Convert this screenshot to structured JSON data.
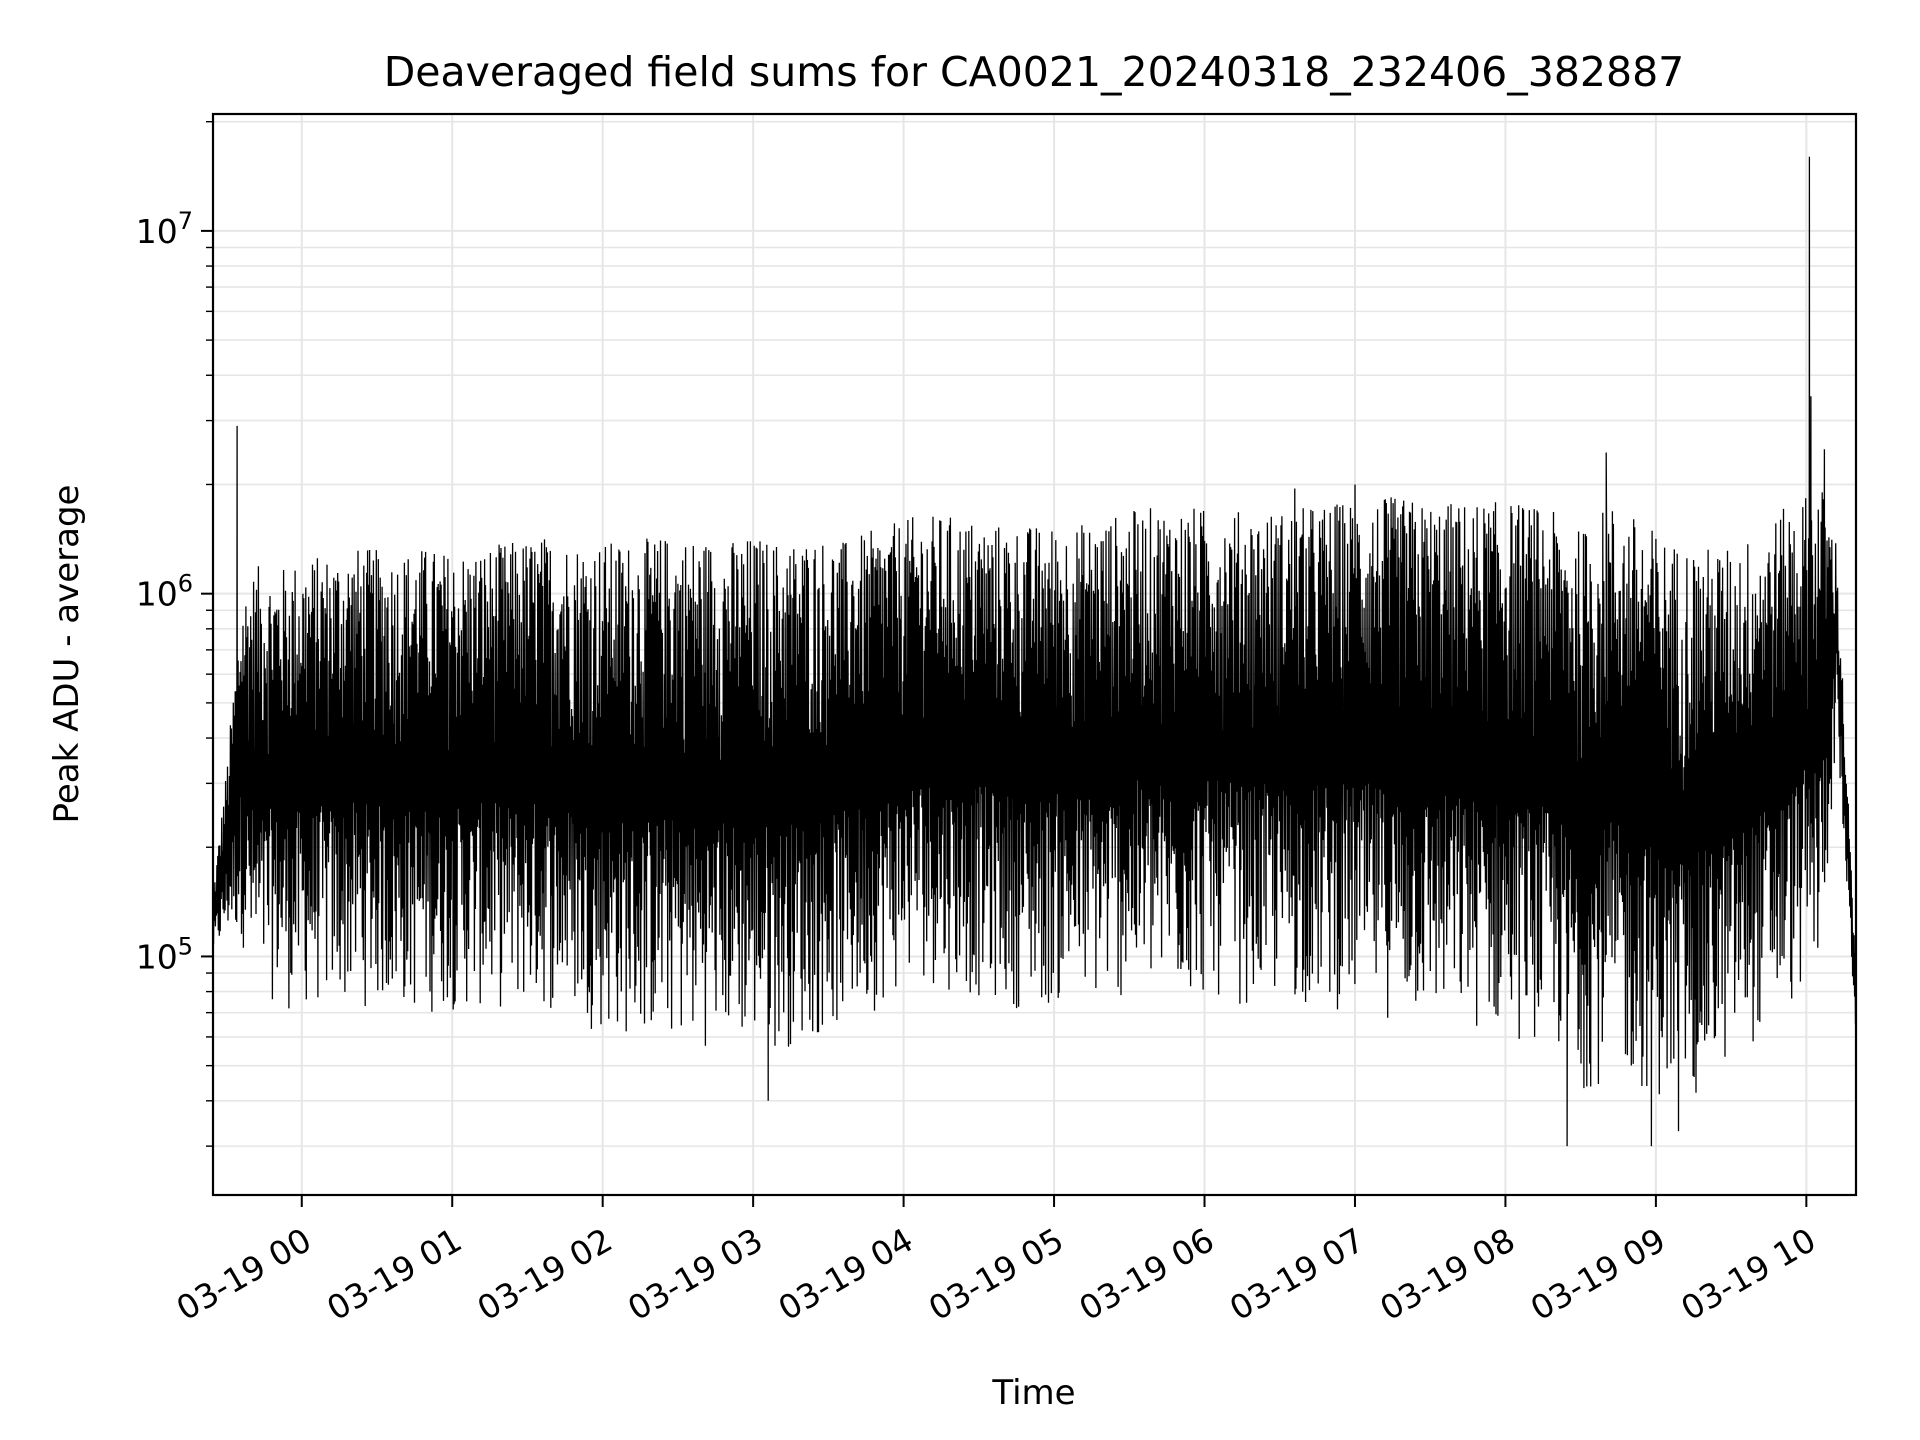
{
  "chart_data": {
    "type": "line",
    "title": "Deaveraged field sums for CA0021_20240318_232406_382887",
    "xlabel": "Time",
    "ylabel": "Peak ADU - average",
    "yscale": "log",
    "ylim": [
      22000,
      21000000
    ],
    "y_ticks": [
      {
        "value": 100000,
        "base": "10",
        "exp": "5"
      },
      {
        "value": 1000000,
        "base": "10",
        "exp": "6"
      },
      {
        "value": 10000000,
        "base": "10",
        "exp": "7"
      }
    ],
    "x_ticks": [
      "03-19 00",
      "03-19 01",
      "03-19 02",
      "03-19 03",
      "03-19 04",
      "03-19 05",
      "03-19 06",
      "03-19 07",
      "03-19 08",
      "03-19 09",
      "03-19 10"
    ],
    "xlim_hours": [
      -0.59,
      10.33
    ],
    "grid": true,
    "line_color": "#000000",
    "series": [
      {
        "envelope": {
          "hours": [
            -0.59,
            -0.5,
            -0.4,
            -0.3,
            -0.2,
            -0.1,
            0.0,
            0.2,
            0.4,
            0.6,
            0.8,
            1.0,
            1.2,
            1.4,
            1.6,
            1.8,
            2.0,
            2.2,
            2.4,
            2.6,
            2.8,
            3.0,
            3.2,
            3.4,
            3.6,
            3.8,
            4.0,
            4.1,
            4.3,
            4.5,
            4.7,
            4.9,
            5.1,
            5.3,
            5.5,
            5.7,
            5.9,
            6.1,
            6.3,
            6.5,
            6.7,
            6.9,
            7.1,
            7.3,
            7.5,
            7.7,
            7.9,
            8.1,
            8.3,
            8.5,
            8.7,
            8.9,
            9.1,
            9.3,
            9.5,
            9.7,
            9.9,
            10.0,
            10.1,
            10.2,
            10.33
          ],
          "upper": [
            150000,
            330000,
            1000000,
            1200000,
            1150000,
            1200000,
            1250000,
            1300000,
            1350000,
            1300000,
            1350000,
            1300000,
            1350000,
            1400000,
            1450000,
            1400000,
            1400000,
            1400000,
            1450000,
            1450000,
            1400000,
            1450000,
            1400000,
            1450000,
            1400000,
            1500000,
            1600000,
            1650000,
            1650000,
            1600000,
            1550000,
            1550000,
            1550000,
            1600000,
            1700000,
            1750000,
            1750000,
            1700000,
            1700000,
            1700000,
            1750000,
            1800000,
            1850000,
            1850000,
            1800000,
            1800000,
            1800000,
            1800000,
            1700000,
            1500000,
            1800000,
            1600000,
            1400000,
            1350000,
            1350000,
            1500000,
            1800000,
            1900000,
            2000000,
            1400000,
            90000
          ],
          "lower": [
            100000,
            110000,
            110000,
            70000,
            75000,
            70000,
            70000,
            72000,
            72000,
            70000,
            68000,
            70000,
            70000,
            70000,
            70000,
            68000,
            60000,
            58000,
            58000,
            55000,
            58000,
            55000,
            55000,
            58000,
            62000,
            70000,
            80000,
            85000,
            80000,
            75000,
            72000,
            70000,
            72000,
            72000,
            75000,
            75000,
            75000,
            75000,
            72000,
            72000,
            72000,
            70000,
            68000,
            66000,
            64000,
            62000,
            60000,
            58000,
            55000,
            42000,
            45000,
            42000,
            38000,
            40000,
            50000,
            60000,
            70000,
            80000,
            90000,
            400000,
            60000
          ]
        },
        "peaks": [
          {
            "hour": -0.43,
            "value": 2900000
          },
          {
            "hour": 6.6,
            "value": 1950000
          },
          {
            "hour": 7.0,
            "value": 2000000
          },
          {
            "hour": 8.67,
            "value": 2450000
          },
          {
            "hour": 10.02,
            "value": 16000000
          },
          {
            "hour": 10.03,
            "value": 3500000
          },
          {
            "hour": 10.12,
            "value": 2500000
          }
        ],
        "troughs": [
          {
            "hour": 3.1,
            "value": 40000
          },
          {
            "hour": 8.41,
            "value": 30000
          },
          {
            "hour": 8.97,
            "value": 30000
          },
          {
            "hour": 9.15,
            "value": 33000
          }
        ]
      }
    ]
  }
}
